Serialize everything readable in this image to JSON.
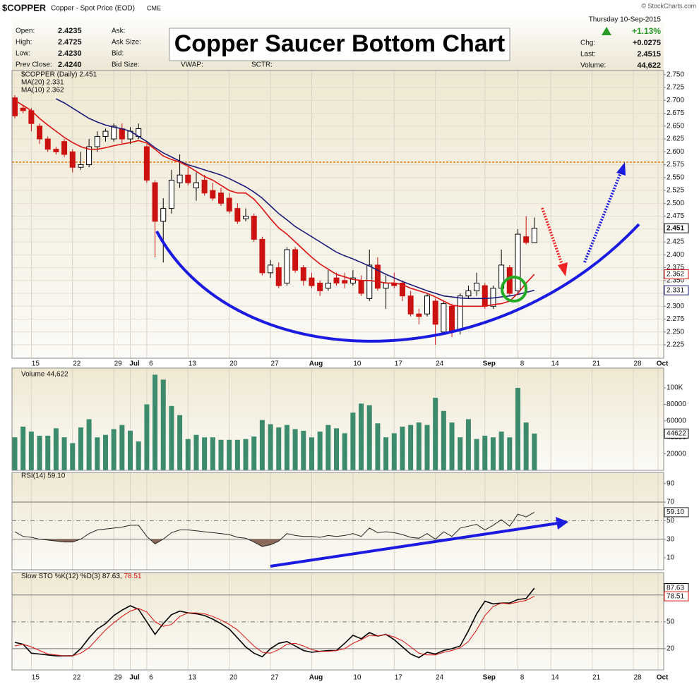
{
  "header": {
    "symbol": "$COPPER",
    "name": "Copper - Spot Price (EOD)",
    "exchange": "CME",
    "credit": "© StockCharts.com",
    "date": "Thursday 10-Sep-2015",
    "change_pct": "+1.13%",
    "quote": [
      {
        "label": "Open:",
        "value": "2.4235"
      },
      {
        "label": "High:",
        "value": "2.4725"
      },
      {
        "label": "Low:",
        "value": "2.4230"
      },
      {
        "label": "Prev Close:",
        "value": "2.4240"
      }
    ],
    "market": [
      "Ask:",
      "Ask Size:",
      "Bid:",
      "Bid Size:"
    ],
    "extra": [
      "VWAP:",
      "SCTR:"
    ],
    "summary": [
      {
        "label": "Chg:",
        "value": "+0.0275"
      },
      {
        "label": "Last:",
        "value": "2.4515"
      },
      {
        "label": "Volume:",
        "value": "44,622"
      }
    ]
  },
  "chart_data": [
    {
      "type": "candlestick",
      "title": "Copper Saucer Bottom Chart",
      "legend": "$COPPER (Daily) 2.451",
      "last_label": "2.451",
      "categories": [
        null,
        null,
        "15",
        null,
        null,
        null,
        null,
        "22",
        null,
        null,
        null,
        null,
        "29",
        null,
        "Jul",
        null,
        "6",
        null,
        null,
        null,
        null,
        "13",
        null,
        null,
        null,
        null,
        "20",
        null,
        null,
        null,
        null,
        "27",
        null,
        null,
        null,
        null,
        "Aug",
        null,
        null,
        null,
        null,
        "10",
        null,
        null,
        null,
        null,
        "17",
        null,
        null,
        null,
        null,
        "24",
        null,
        null,
        null,
        null,
        null,
        "Sep",
        null,
        null,
        null,
        "8",
        null,
        null,
        null,
        "14",
        null,
        null,
        null,
        null,
        "21",
        null,
        null,
        null,
        null,
        "28",
        null,
        null,
        "Oct"
      ],
      "open": [
        2.705,
        2.685,
        2.68,
        2.65,
        2.625,
        2.605,
        2.62,
        2.6,
        2.57,
        2.575,
        2.61,
        2.63,
        2.625,
        2.645,
        2.625,
        2.63,
        2.61,
        2.54,
        2.465,
        2.49,
        2.54,
        2.555,
        2.53,
        2.545,
        2.525,
        2.52,
        2.51,
        2.49,
        2.47,
        2.475,
        2.43,
        2.365,
        2.375,
        2.345,
        2.41,
        2.375,
        2.355,
        2.345,
        2.335,
        2.355,
        2.35,
        2.345,
        2.35,
        2.315,
        2.38,
        2.335,
        2.345,
        2.345,
        2.32,
        2.285,
        2.285,
        2.31,
        2.25,
        2.3,
        2.255,
        2.32,
        2.33,
        2.34,
        2.3,
        2.335,
        2.375,
        2.33,
        2.435,
        2.4235,
        null,
        null,
        null,
        null,
        null,
        null,
        null,
        null,
        null,
        null,
        null,
        null,
        null,
        null,
        null
      ],
      "high": [
        2.71,
        2.69,
        2.685,
        2.655,
        2.63,
        2.61,
        2.625,
        2.605,
        2.6,
        2.625,
        2.64,
        2.645,
        2.655,
        2.655,
        2.648,
        2.655,
        2.615,
        2.545,
        2.51,
        2.565,
        2.595,
        2.57,
        2.56,
        2.555,
        2.54,
        2.53,
        2.52,
        2.5,
        2.49,
        2.48,
        2.435,
        2.39,
        2.385,
        2.415,
        2.415,
        2.38,
        2.365,
        2.35,
        2.37,
        2.365,
        2.365,
        2.37,
        2.36,
        2.41,
        2.395,
        2.36,
        2.365,
        2.35,
        2.33,
        2.295,
        2.325,
        2.315,
        2.31,
        2.305,
        2.325,
        2.34,
        2.365,
        2.345,
        2.34,
        2.41,
        2.38,
        2.45,
        2.475,
        2.4725,
        null,
        null,
        null,
        null,
        null,
        null,
        null,
        null,
        null,
        null,
        null,
        null,
        null,
        null,
        null
      ],
      "low": [
        2.665,
        2.675,
        2.64,
        2.615,
        2.6,
        2.595,
        2.59,
        2.56,
        2.565,
        2.57,
        2.6,
        2.62,
        2.62,
        2.615,
        2.615,
        2.625,
        2.54,
        2.395,
        2.385,
        2.48,
        2.53,
        2.535,
        2.505,
        2.515,
        2.505,
        2.495,
        2.48,
        2.46,
        2.465,
        2.425,
        2.36,
        2.355,
        2.335,
        2.34,
        2.365,
        2.34,
        2.335,
        2.32,
        2.33,
        2.34,
        2.335,
        2.34,
        2.32,
        2.31,
        2.33,
        2.295,
        2.335,
        2.31,
        2.28,
        2.265,
        2.28,
        2.225,
        2.245,
        2.24,
        2.245,
        2.315,
        2.32,
        2.295,
        2.295,
        2.33,
        2.32,
        2.325,
        2.42,
        2.423,
        null,
        null,
        null,
        null,
        null,
        null,
        null,
        null,
        null,
        null,
        null,
        null,
        null,
        null,
        null
      ],
      "close": [
        2.67,
        2.68,
        2.655,
        2.625,
        2.605,
        2.6,
        2.595,
        2.57,
        2.575,
        2.61,
        2.63,
        2.64,
        2.65,
        2.625,
        2.64,
        2.645,
        2.545,
        2.465,
        2.49,
        2.545,
        2.555,
        2.54,
        2.54,
        2.52,
        2.51,
        2.5,
        2.485,
        2.465,
        2.475,
        2.43,
        2.365,
        2.38,
        2.34,
        2.41,
        2.37,
        2.35,
        2.34,
        2.33,
        2.345,
        2.345,
        2.345,
        2.355,
        2.325,
        2.38,
        2.335,
        2.345,
        2.34,
        2.32,
        2.285,
        2.28,
        2.32,
        2.265,
        2.305,
        2.25,
        2.32,
        2.33,
        2.345,
        2.3,
        2.335,
        2.38,
        2.325,
        2.44,
        2.424,
        2.4515,
        null,
        null,
        null,
        null,
        null,
        null,
        null,
        null,
        null,
        null,
        null,
        null,
        null,
        null,
        null
      ],
      "up_color": "#000000",
      "down_color": "#cc1111",
      "overlays": [
        {
          "name": "MA(20) 2.331",
          "last_label": "2.331",
          "color": "#1c1c7a",
          "values": [
            null,
            null,
            null,
            null,
            null,
            2.703,
            2.695,
            2.685,
            2.675,
            2.665,
            2.658,
            2.652,
            2.648,
            2.645,
            2.64,
            2.63,
            2.62,
            2.608,
            2.598,
            2.59,
            2.582,
            2.575,
            2.57,
            2.565,
            2.56,
            2.555,
            2.548,
            2.54,
            2.532,
            2.522,
            2.51,
            2.495,
            2.48,
            2.468,
            2.455,
            2.445,
            2.435,
            2.425,
            2.415,
            2.405,
            2.398,
            2.392,
            2.385,
            2.378,
            2.37,
            2.362,
            2.355,
            2.348,
            2.342,
            2.336,
            2.33,
            2.325,
            2.32,
            2.318,
            2.316,
            2.315,
            2.315,
            2.315,
            2.316,
            2.318,
            2.32,
            2.323,
            2.327,
            2.331,
            null,
            null,
            null,
            null,
            null,
            null,
            null,
            null,
            null,
            null,
            null,
            null,
            null,
            null,
            null
          ]
        },
        {
          "name": "MA(10) 2.362",
          "last_label": "2.362",
          "color": "#dd1111",
          "values": [
            2.7,
            2.69,
            2.68,
            2.665,
            2.652,
            2.64,
            2.628,
            2.618,
            2.61,
            2.605,
            2.605,
            2.608,
            2.612,
            2.615,
            2.618,
            2.622,
            2.617,
            2.605,
            2.592,
            2.585,
            2.58,
            2.572,
            2.562,
            2.552,
            2.545,
            2.535,
            2.525,
            2.52,
            2.52,
            2.508,
            2.49,
            2.47,
            2.452,
            2.44,
            2.425,
            2.41,
            2.395,
            2.382,
            2.372,
            2.362,
            2.357,
            2.352,
            2.35,
            2.35,
            2.348,
            2.345,
            2.345,
            2.342,
            2.335,
            2.33,
            2.325,
            2.318,
            2.31,
            2.302,
            2.3,
            2.3,
            2.3,
            2.3,
            2.303,
            2.305,
            2.31,
            2.325,
            2.345,
            2.362,
            null,
            null,
            null,
            null,
            null,
            null,
            null,
            null,
            null,
            null,
            null,
            null,
            null,
            null,
            null
          ]
        }
      ],
      "hline": {
        "value": 2.58,
        "color": "#e07b00"
      },
      "ylim": [
        2.199,
        2.758
      ],
      "yticks": [
        {
          "value": 2.75,
          "label": "2.750"
        },
        2.725,
        {
          "value": 2.7,
          "label": "2.700"
        },
        2.675,
        {
          "value": 2.65,
          "label": "2.650"
        },
        2.625,
        {
          "value": 2.6,
          "label": "2.600"
        },
        2.575,
        {
          "value": 2.55,
          "label": "2.550"
        },
        2.525,
        {
          "value": 2.5,
          "label": "2.500"
        },
        2.475,
        {
          "value": 2.45,
          "label": "2.450"
        },
        2.425,
        {
          "value": 2.4,
          "label": "2.400"
        },
        2.375,
        {
          "value": 2.35,
          "label": "2.350"
        },
        2.325,
        {
          "value": 2.3,
          "label": "2.300"
        },
        2.275,
        {
          "value": 2.25,
          "label": "2.250"
        },
        2.225
      ],
      "grid": true
    },
    {
      "type": "bar",
      "legend": "Volume 44,622",
      "color": "#3d8b6d",
      "values": [
        40000,
        53000,
        47000,
        42000,
        42000,
        51000,
        40000,
        33000,
        52000,
        62000,
        40000,
        43000,
        50000,
        55000,
        48000,
        35000,
        80000,
        116000,
        110000,
        78000,
        67000,
        38000,
        43000,
        40000,
        40000,
        37000,
        37000,
        37000,
        38000,
        41000,
        61000,
        56000,
        52000,
        55000,
        50000,
        48000,
        40000,
        47000,
        55000,
        51000,
        45000,
        70000,
        81000,
        79000,
        57000,
        40000,
        45000,
        53000,
        55000,
        58000,
        55000,
        88000,
        72000,
        58000,
        40000,
        62000,
        38000,
        42000,
        40000,
        47000,
        40000,
        100000,
        58000,
        44622,
        null,
        null,
        null,
        null,
        null,
        null,
        null,
        null,
        null,
        null,
        null,
        null,
        null,
        null,
        null
      ],
      "ylim": [
        0,
        124000
      ],
      "yticks": [
        20000,
        40000,
        60000,
        80000,
        {
          "value": 100000,
          "label": "100K"
        }
      ],
      "grid": false
    },
    {
      "type": "line",
      "legend": "RSI(14) 59.10",
      "last_label": "59.10",
      "fill_below": 30,
      "fill_color": "#8b6a5a",
      "series": [
        {
          "name": "RSI(14)",
          "color": "#222222",
          "values": [
            38,
            33,
            32,
            30,
            29,
            28,
            27,
            27,
            30,
            36,
            40,
            41,
            42,
            43,
            45,
            45,
            33,
            25,
            30,
            37,
            40,
            40,
            39,
            38,
            37,
            36,
            35,
            32,
            31,
            27,
            22,
            24,
            28,
            36,
            34,
            33,
            33,
            32,
            34,
            33,
            34,
            36,
            33,
            42,
            37,
            38,
            37,
            35,
            32,
            31,
            36,
            30,
            38,
            33,
            42,
            44,
            46,
            40,
            45,
            51,
            44,
            57,
            54,
            59.1,
            null,
            null,
            null,
            null,
            null,
            null,
            null,
            null,
            null,
            null,
            null,
            null,
            null,
            null,
            null
          ]
        }
      ],
      "levels": [
        {
          "value": 70,
          "style": "solid"
        },
        {
          "value": 50,
          "style": "dashdot"
        },
        {
          "value": 30,
          "style": "solid"
        }
      ],
      "ylim": [
        -3,
        102
      ],
      "yticks": [
        10,
        30,
        50,
        70,
        90
      ],
      "grid": false
    },
    {
      "type": "line",
      "title": "Slow STO %K(12) %D(3)",
      "legend_labels": [
        "87.63,",
        "78.51"
      ],
      "categories": [
        null,
        null,
        "15",
        null,
        null,
        null,
        null,
        "22",
        null,
        null,
        null,
        null,
        "29",
        null,
        "Jul",
        null,
        "6",
        null,
        null,
        null,
        null,
        "13",
        null,
        null,
        null,
        null,
        "20",
        null,
        null,
        null,
        null,
        "27",
        null,
        null,
        null,
        null,
        "Aug",
        null,
        null,
        null,
        null,
        "10",
        null,
        null,
        null,
        null,
        "17",
        null,
        null,
        null,
        null,
        "24",
        null,
        null,
        null,
        null,
        null,
        "Sep",
        null,
        null,
        null,
        "8",
        null,
        null,
        null,
        "14",
        null,
        null,
        null,
        null,
        "21",
        null,
        null,
        null,
        null,
        "28",
        null,
        null,
        "Oct"
      ],
      "series": [
        {
          "name": "%K(12)",
          "color": "#000000",
          "values": [
            27,
            25,
            15,
            14,
            13,
            12,
            12,
            12,
            20,
            32,
            42,
            48,
            57,
            63,
            68,
            64,
            50,
            36,
            48,
            58,
            62,
            60,
            59,
            57,
            53,
            48,
            42,
            32,
            22,
            15,
            11,
            20,
            26,
            28,
            23,
            18,
            16,
            17,
            18,
            18,
            26,
            35,
            31,
            38,
            34,
            36,
            30,
            22,
            14,
            10,
            16,
            14,
            18,
            20,
            23,
            40,
            59,
            73,
            70,
            71,
            71,
            75,
            76,
            87.63,
            null,
            null,
            null,
            null,
            null,
            null,
            null,
            null,
            null,
            null,
            null,
            null,
            null,
            null,
            null
          ]
        },
        {
          "name": "%D(3)",
          "color": "#dd1111",
          "values": [
            23,
            25,
            22,
            18,
            14,
            13,
            12,
            12,
            15,
            21,
            31,
            41,
            49,
            56,
            62,
            65,
            61,
            50,
            45,
            47,
            56,
            60,
            60,
            59,
            56,
            52,
            47,
            41,
            32,
            23,
            16,
            15,
            19,
            25,
            26,
            23,
            19,
            17,
            17,
            18,
            20,
            26,
            30,
            35,
            34,
            36,
            33,
            29,
            22,
            15,
            13,
            13,
            16,
            18,
            21,
            28,
            41,
            57,
            67,
            71,
            70,
            72,
            74,
            78.51,
            null,
            null,
            null,
            null,
            null,
            null,
            null,
            null,
            null,
            null,
            null,
            null,
            null,
            null,
            null
          ]
        }
      ],
      "levels": [
        {
          "value": 80,
          "style": "solid"
        },
        {
          "value": 50,
          "style": "dashdot"
        },
        {
          "value": 20,
          "style": "solid"
        }
      ],
      "ylim": [
        -3.7,
        105
      ],
      "yticks": [
        20,
        50,
        80
      ],
      "grid": false
    }
  ]
}
